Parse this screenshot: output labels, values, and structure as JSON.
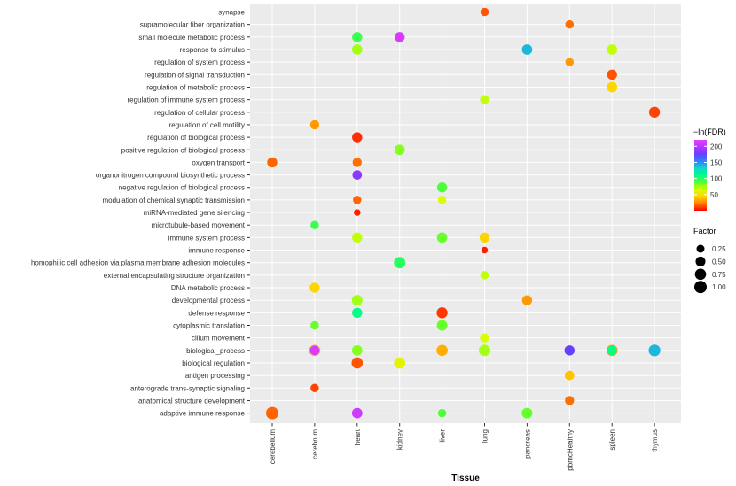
{
  "chart_data": {
    "type": "scatter",
    "xlabel": "Tissue",
    "ylabel": "",
    "x_categories": [
      "cerebellum",
      "cerebrum",
      "heart",
      "kidney",
      "liver",
      "lung",
      "pancreas",
      "pbmcHealthy",
      "spleen",
      "thymus"
    ],
    "y_categories": [
      "synapse",
      "supramolecular fiber organization",
      "small molecule metabolic process",
      "response to stimulus",
      "regulation of system process",
      "regulation of signal transduction",
      "regulation of metabolic process",
      "regulation of immune system process",
      "regulation of cellular process",
      "regulation of cell motility",
      "regulation of biological process",
      "positive regulation of biological process",
      "oxygen transport",
      "organonitrogen compound biosynthetic process",
      "negative regulation of biological process",
      "modulation of chemical synaptic transmission",
      "miRNA-mediated gene silencing",
      "microtubule-based movement",
      "immune system process",
      "immune response",
      "homophilic cell adhesion via plasma membrane adhesion molecules",
      "external encapsulating structure organization",
      "DNA metabolic process",
      "developmental process",
      "defense response",
      "cytoplasmic translation",
      "cilium movement",
      "biological_process",
      "biological regulation",
      "antigen processing",
      "anterograde trans-synaptic signaling",
      "anatomical structure development",
      "adaptive immune response"
    ],
    "points": [
      {
        "x": "lung",
        "y": "synapse",
        "fdr": 15,
        "factor": 0.3
      },
      {
        "x": "pbmcHealthy",
        "y": "supramolecular fiber organization",
        "fdr": 20,
        "factor": 0.3
      },
      {
        "x": "heart",
        "y": "small molecule metabolic process",
        "fdr": 95,
        "factor": 0.55
      },
      {
        "x": "kidney",
        "y": "small molecule metabolic process",
        "fdr": 215,
        "factor": 0.55
      },
      {
        "x": "heart",
        "y": "response to stimulus",
        "fdr": 75,
        "factor": 0.6
      },
      {
        "x": "pancreas",
        "y": "response to stimulus",
        "fdr": 140,
        "factor": 0.6
      },
      {
        "x": "spleen",
        "y": "response to stimulus",
        "fdr": 70,
        "factor": 0.6
      },
      {
        "x": "pbmcHealthy",
        "y": "regulation of system process",
        "fdr": 30,
        "factor": 0.3
      },
      {
        "x": "spleen",
        "y": "regulation of signal transduction",
        "fdr": 15,
        "factor": 0.55
      },
      {
        "x": "spleen",
        "y": "regulation of metabolic process",
        "fdr": 45,
        "factor": 0.6
      },
      {
        "x": "lung",
        "y": "regulation of immune system process",
        "fdr": 70,
        "factor": 0.4
      },
      {
        "x": "thymus",
        "y": "regulation of cellular process",
        "fdr": 12,
        "factor": 0.7
      },
      {
        "x": "cerebrum",
        "y": "regulation of cell motility",
        "fdr": 30,
        "factor": 0.4
      },
      {
        "x": "heart",
        "y": "regulation of biological process",
        "fdr": 8,
        "factor": 0.55
      },
      {
        "x": "kidney",
        "y": "positive regulation of biological process",
        "fdr": 80,
        "factor": 0.6
      },
      {
        "x": "cerebellum",
        "y": "oxygen transport",
        "fdr": 18,
        "factor": 0.55
      },
      {
        "x": "heart",
        "y": "oxygen transport",
        "fdr": 20,
        "factor": 0.4
      },
      {
        "x": "heart",
        "y": "organonitrogen compound biosynthetic process",
        "fdr": 185,
        "factor": 0.45
      },
      {
        "x": "liver",
        "y": "negative regulation of biological process",
        "fdr": 90,
        "factor": 0.55
      },
      {
        "x": "heart",
        "y": "modulation of chemical synaptic transmission",
        "fdr": 18,
        "factor": 0.3
      },
      {
        "x": "liver",
        "y": "modulation of chemical synaptic transmission",
        "fdr": 65,
        "factor": 0.3
      },
      {
        "x": "heart",
        "y": "miRNA-mediated gene silencing",
        "fdr": 5,
        "factor": 0.12
      },
      {
        "x": "cerebrum",
        "y": "microtubule-based movement",
        "fdr": 95,
        "factor": 0.3
      },
      {
        "x": "heart",
        "y": "immune system process",
        "fdr": 70,
        "factor": 0.55
      },
      {
        "x": "liver",
        "y": "immune system process",
        "fdr": 85,
        "factor": 0.6
      },
      {
        "x": "lung",
        "y": "immune system process",
        "fdr": 45,
        "factor": 0.55
      },
      {
        "x": "lung",
        "y": "immune response",
        "fdr": 5,
        "factor": 0.12
      },
      {
        "x": "kidney",
        "y": "homophilic cell adhesion via plasma membrane adhesion molecules",
        "fdr": 100,
        "factor": 0.8
      },
      {
        "x": "lung",
        "y": "external encapsulating structure organization",
        "fdr": 70,
        "factor": 0.3
      },
      {
        "x": "cerebrum",
        "y": "DNA metabolic process",
        "fdr": 45,
        "factor": 0.55
      },
      {
        "x": "heart",
        "y": "developmental process",
        "fdr": 75,
        "factor": 0.65
      },
      {
        "x": "pancreas",
        "y": "developmental process",
        "fdr": 30,
        "factor": 0.55
      },
      {
        "x": "heart",
        "y": "defense response",
        "fdr": 110,
        "factor": 0.55
      },
      {
        "x": "liver",
        "y": "defense response",
        "fdr": 10,
        "factor": 0.7
      },
      {
        "x": "cerebrum",
        "y": "cytoplasmic translation",
        "fdr": 85,
        "factor": 0.3
      },
      {
        "x": "liver",
        "y": "cytoplasmic translation",
        "fdr": 85,
        "factor": 0.65
      },
      {
        "x": "lung",
        "y": "cilium movement",
        "fdr": 65,
        "factor": 0.4
      },
      {
        "x": "cerebrum",
        "y": "biological_process",
        "fdr": 35,
        "factor": 0.75
      },
      {
        "x": "cerebrum",
        "y": "biological_process",
        "fdr": 215,
        "factor": 0.45
      },
      {
        "x": "heart",
        "y": "biological_process",
        "fdr": 80,
        "factor": 0.6
      },
      {
        "x": "liver",
        "y": "biological_process",
        "fdr": 35,
        "factor": 0.75
      },
      {
        "x": "lung",
        "y": "biological_process",
        "fdr": 75,
        "factor": 0.8
      },
      {
        "x": "pbmcHealthy",
        "y": "biological_process",
        "fdr": 175,
        "factor": 0.55
      },
      {
        "x": "spleen",
        "y": "biological_process",
        "fdr": 30,
        "factor": 0.75
      },
      {
        "x": "spleen",
        "y": "biological_process",
        "fdr": 110,
        "factor": 0.45
      },
      {
        "x": "thymus",
        "y": "biological_process",
        "fdr": 140,
        "factor": 0.85
      },
      {
        "x": "heart",
        "y": "biological regulation",
        "fdr": 15,
        "factor": 0.75
      },
      {
        "x": "kidney",
        "y": "biological regulation",
        "fdr": 60,
        "factor": 0.75
      },
      {
        "x": "pbmcHealthy",
        "y": "antigen processing",
        "fdr": 40,
        "factor": 0.45
      },
      {
        "x": "cerebrum",
        "y": "anterograde trans-synaptic signaling",
        "fdr": 12,
        "factor": 0.3
      },
      {
        "x": "pbmcHealthy",
        "y": "anatomical structure development",
        "fdr": 20,
        "factor": 0.4
      },
      {
        "x": "cerebellum",
        "y": "adaptive immune response",
        "fdr": 18,
        "factor": 1.0
      },
      {
        "x": "heart",
        "y": "adaptive immune response",
        "fdr": 210,
        "factor": 0.6
      },
      {
        "x": "liver",
        "y": "adaptive immune response",
        "fdr": 90,
        "factor": 0.3
      },
      {
        "x": "pancreas",
        "y": "adaptive immune response",
        "fdr": 85,
        "factor": 0.65
      }
    ],
    "color_legend": {
      "title": "−ln(FDR)",
      "ticks": [
        50,
        100,
        150,
        200
      ],
      "range": [
        0,
        220
      ],
      "colors": [
        "#ff0000",
        "#ff7a00",
        "#ffd400",
        "#d8ff00",
        "#55ff33",
        "#00ff88",
        "#10d6c8",
        "#2f80ff",
        "#6a3dff",
        "#bb33ff",
        "#e040ff"
      ]
    },
    "size_legend": {
      "title": "Factor",
      "ticks": [
        0.25,
        0.5,
        0.75,
        1.0
      ],
      "labels": [
        "0.25",
        "0.50",
        "0.75",
        "1.00"
      ]
    },
    "grid": true
  }
}
